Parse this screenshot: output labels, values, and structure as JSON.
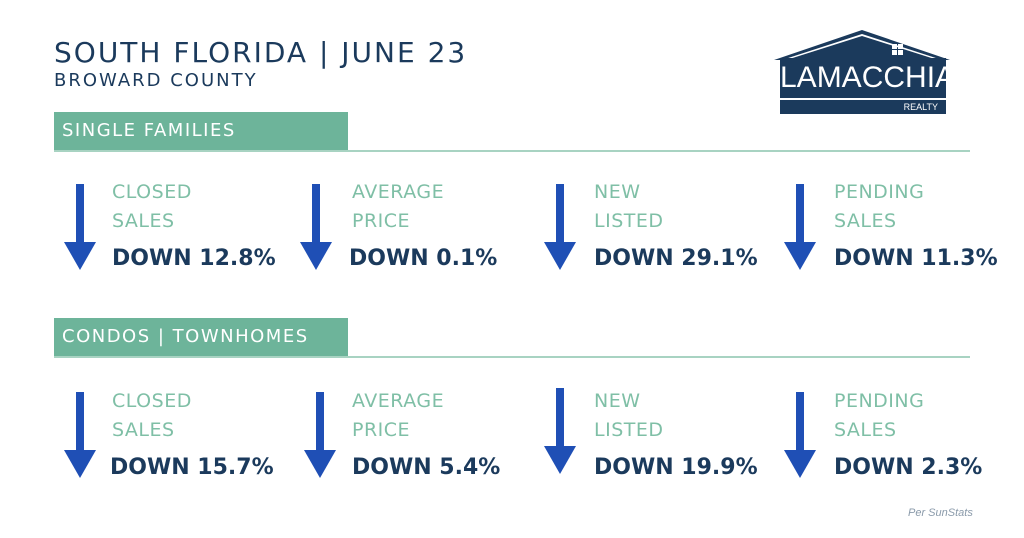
{
  "header": {
    "title": "SOUTH FLORIDA | JUNE 23",
    "subtitle": "BROWARD COUNTY"
  },
  "logo": {
    "name": "LAMACCHIA",
    "tagline": "REALTY"
  },
  "colors": {
    "navy": "#1b3a5c",
    "green": "#6db49a",
    "label_green": "#7fbfa6",
    "arrow_blue": "#1f4fb5"
  },
  "sections": [
    {
      "name": "SINGLE FAMILIES",
      "stats": [
        {
          "label_line1": "CLOSED",
          "label_line2": "SALES",
          "value": "DOWN 12.8%",
          "icon": "down-arrow-icon"
        },
        {
          "label_line1": "AVERAGE",
          "label_line2": "PRICE",
          "value": "DOWN 0.1%",
          "icon": "down-arrow-icon"
        },
        {
          "label_line1": "NEW",
          "label_line2": "LISTED",
          "value": "DOWN 29.1%",
          "icon": "down-arrow-icon"
        },
        {
          "label_line1": "PENDING",
          "label_line2": "SALES",
          "value": "DOWN 11.3%",
          "icon": "down-arrow-icon"
        }
      ]
    },
    {
      "name": "CONDOS | TOWNHOMES",
      "stats": [
        {
          "label_line1": "CLOSED",
          "label_line2": "SALES",
          "value": "DOWN 15.7%",
          "icon": "down-arrow-icon"
        },
        {
          "label_line1": "AVERAGE",
          "label_line2": "PRICE",
          "value": "DOWN 5.4%",
          "icon": "down-arrow-icon"
        },
        {
          "label_line1": "NEW",
          "label_line2": "LISTED",
          "value": "DOWN 19.9%",
          "icon": "down-arrow-icon"
        },
        {
          "label_line1": "PENDING",
          "label_line2": "SALES",
          "value": "DOWN 2.3%",
          "icon": "down-arrow-icon"
        }
      ]
    }
  ],
  "footer": {
    "source": "Per SunStats"
  }
}
